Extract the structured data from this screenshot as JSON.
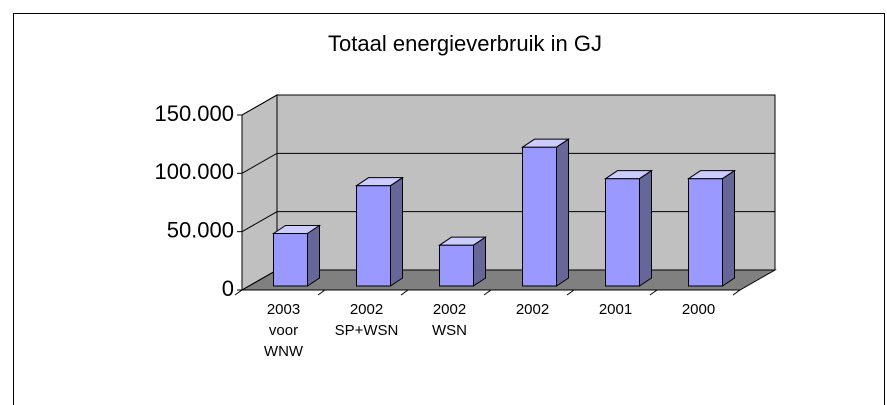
{
  "chart_data": {
    "type": "bar3d",
    "title": "Totaal energieverbruik in GJ",
    "categories": [
      [
        "2003",
        "voor",
        "WNW"
      ],
      [
        "2002",
        "SP+WSN"
      ],
      [
        "2002",
        "WSN"
      ],
      [
        "2002"
      ],
      [
        "2001"
      ],
      [
        "2000"
      ]
    ],
    "values": [
      45000,
      86000,
      35000,
      119000,
      92000,
      92000
    ],
    "color": "#9999ff",
    "ylim": [
      0,
      150000
    ],
    "yticks": [
      0,
      {
        "value": 50000,
        "label": "50.000"
      },
      {
        "value": 100000,
        "label": "100.000"
      },
      {
        "value": 150000,
        "label": "150.000"
      }
    ],
    "grid": true
  }
}
